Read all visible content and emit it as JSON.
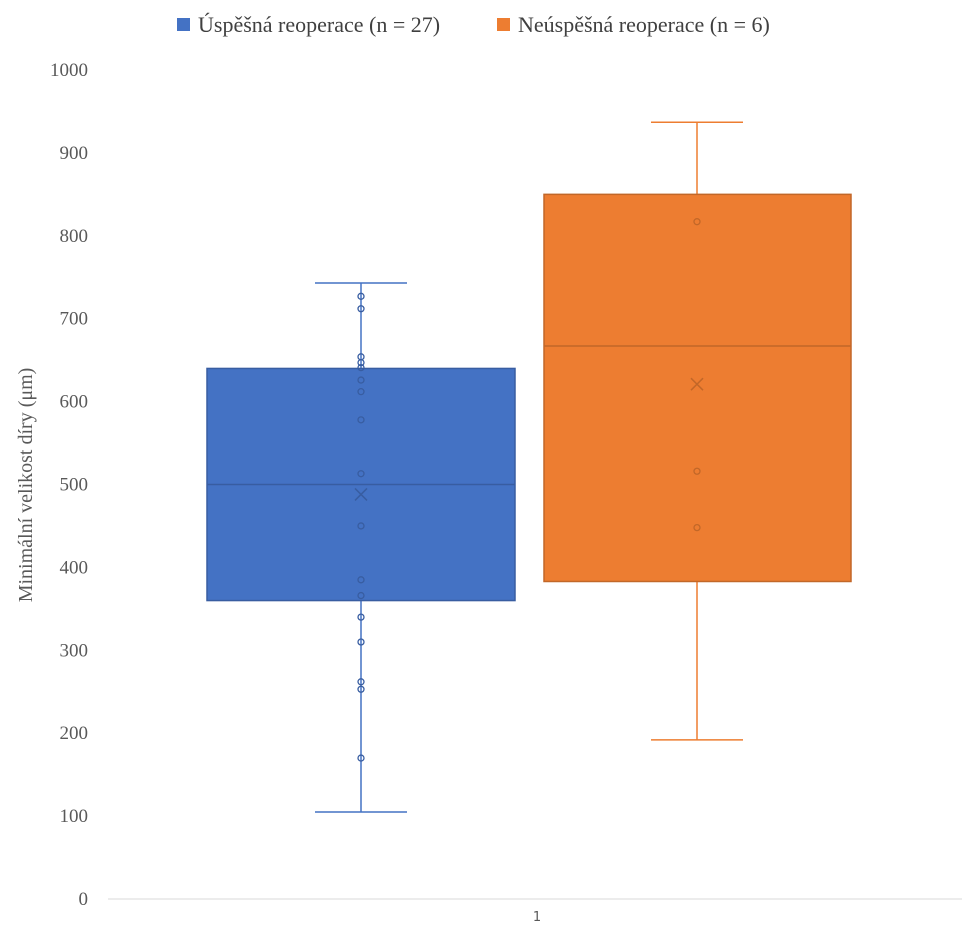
{
  "chart_data": {
    "type": "box",
    "title": "",
    "xlabel": "",
    "ylabel": "Minimální velikost díry (μm)",
    "ylim": [
      0,
      1000
    ],
    "yticks": [
      0,
      100,
      200,
      300,
      400,
      500,
      600,
      700,
      800,
      900,
      1000
    ],
    "categories": [
      "1"
    ],
    "grid": false,
    "legend_position": "top",
    "series": [
      {
        "name": "Úspěšná reoperace (n = 27)",
        "color": "#4472C4",
        "min": 105,
        "q1": 360,
        "median": 500,
        "q3": 640,
        "max": 743,
        "mean": 488,
        "points": [
          170,
          253,
          262,
          310,
          340,
          366,
          385,
          450,
          513,
          578,
          612,
          626,
          641,
          647,
          654,
          712,
          727
        ]
      },
      {
        "name": "Neúspěšná reoperace (n = 6)",
        "color": "#ED7D31",
        "min": 192,
        "q1": 383,
        "median": 667,
        "q3": 850,
        "max": 937,
        "mean": 621,
        "points": [
          448,
          516,
          817
        ]
      }
    ]
  }
}
